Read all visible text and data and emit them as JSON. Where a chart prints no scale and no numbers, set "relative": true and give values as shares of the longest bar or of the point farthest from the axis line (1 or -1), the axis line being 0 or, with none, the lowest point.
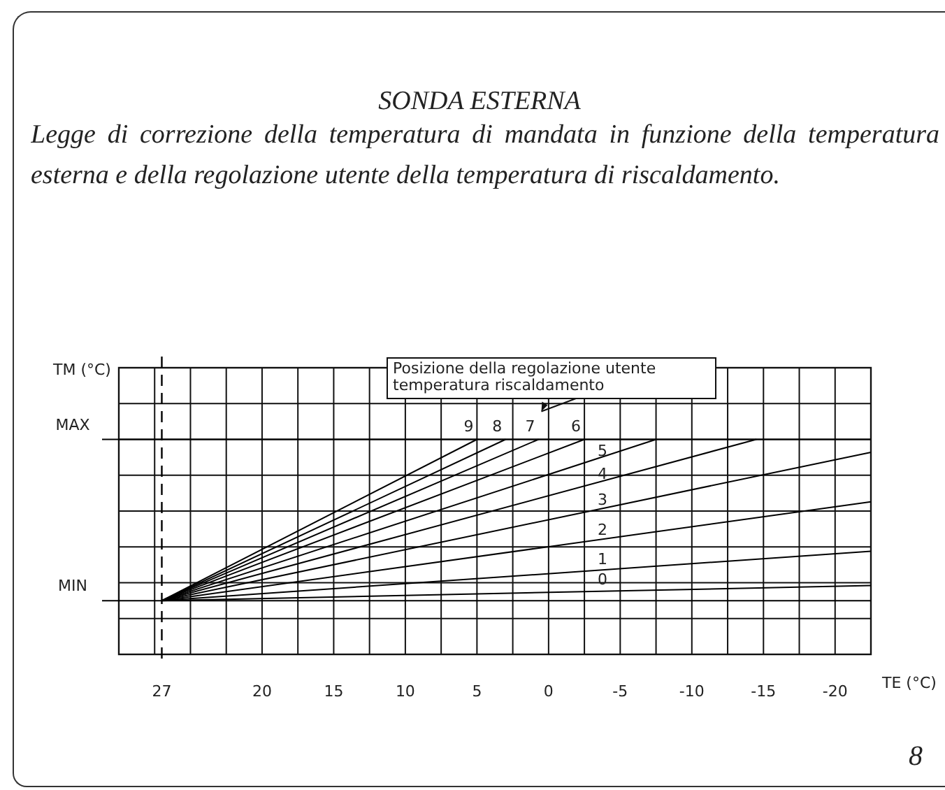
{
  "chart_data": {
    "type": "line",
    "title": "SONDA ESTERNA",
    "subtitle": "Legge di correzione della temperatura di mandata in funzione della temperatura esterna e della regolazione utente della temperatura di riscaldamento.",
    "xlabel": "TE (°C)",
    "ylabel": "TM (°C)",
    "relative": true,
    "xlim": [
      30,
      -22.5
    ],
    "xticks": [
      {
        "value": 27.5,
        "label": null
      },
      27,
      {
        "value": 25,
        "label": null
      },
      {
        "value": 22.5,
        "label": null
      },
      20,
      {
        "value": 17.5,
        "label": null
      },
      15,
      {
        "value": 12.5,
        "label": null
      },
      10,
      {
        "value": 7.5,
        "label": null
      },
      5,
      {
        "value": 2.5,
        "label": null
      },
      0,
      {
        "value": -2.5,
        "label": null
      },
      -5,
      {
        "value": -7.5,
        "label": null
      },
      -10,
      {
        "value": -12.5,
        "label": null
      },
      -15,
      {
        "value": -17.5,
        "label": null
      },
      -20
    ],
    "grid": true,
    "marker": "none",
    "line_style": "solid",
    "legend": false,
    "ref_lines": [
      {
        "axis": "x",
        "value": 27,
        "line_style": "dashed",
        "color": "#000000"
      },
      {
        "axis": "y",
        "value": 1,
        "label": "MAX",
        "color": "#000000"
      },
      {
        "axis": "y",
        "value": 0.25,
        "label": "MIN",
        "color": "#000000"
      }
    ],
    "series": [
      {
        "name": "9",
        "color": "#000000",
        "x": [
          27,
          5
        ],
        "values": [
          0.25,
          1
        ]
      },
      {
        "name": "8",
        "color": "#000000",
        "x": [
          27,
          3
        ],
        "values": [
          0.25,
          1
        ]
      },
      {
        "name": "7",
        "color": "#000000",
        "x": [
          27,
          0.7
        ],
        "values": [
          0.25,
          1
        ]
      },
      {
        "name": "6",
        "color": "#000000",
        "x": [
          27,
          -2.5
        ],
        "values": [
          0.25,
          1
        ]
      },
      {
        "name": "5",
        "color": "#000000",
        "x": [
          27,
          -7.5
        ],
        "values": [
          0.25,
          1
        ]
      },
      {
        "name": "4",
        "color": "#000000",
        "x": [
          27,
          -14.5
        ],
        "values": [
          0.25,
          1
        ]
      },
      {
        "name": "3",
        "color": "#000000",
        "x": [
          27,
          -22.5
        ],
        "values": [
          0.25,
          0.94
        ]
      },
      {
        "name": "2",
        "color": "#000000",
        "x": [
          27,
          -22.5
        ],
        "values": [
          0.25,
          0.71
        ]
      },
      {
        "name": "1",
        "color": "#000000",
        "x": [
          27,
          -22.5
        ],
        "values": [
          0.25,
          0.48
        ]
      },
      {
        "name": "0",
        "color": "#000000",
        "x": [
          27,
          -22.5
        ],
        "values": [
          0.25,
          0.32
        ]
      }
    ],
    "annotations": [
      {
        "text": "Posizione della regolazione utente\ntemperatura riscaldamento",
        "x": 0.7,
        "y": 1
      },
      "8"
    ]
  }
}
